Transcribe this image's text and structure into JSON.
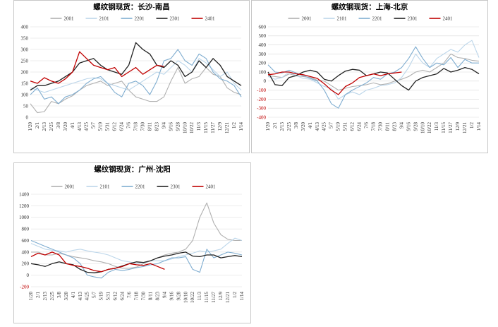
{
  "chart_data": [
    {
      "type": "line",
      "title": "螺纹钢现货：长沙-南昌",
      "legend_position": "top",
      "ylim": [
        0,
        400
      ],
      "yticks": [
        0,
        50,
        100,
        150,
        200,
        250,
        300,
        350,
        400
      ],
      "x_labels": [
        "1/20",
        "2/1",
        "2/13",
        "2/25",
        "3/8",
        "3/20",
        "4/1",
        "4/13",
        "4/25",
        "5/7",
        "5/19",
        "5/31",
        "6/12",
        "6/24",
        "7/6",
        "7/18",
        "7/30",
        "8/11",
        "8/23",
        "9/4",
        "9/16",
        "9/28",
        "10/10",
        "10/22",
        "11/3",
        "11/15",
        "11/27",
        "12/9",
        "12/21",
        "1/2",
        "1/14"
      ],
      "series": [
        {
          "name": "2001",
          "color": "#b0b0b0",
          "values": [
            60,
            20,
            25,
            70,
            60,
            80,
            95,
            120,
            140,
            150,
            160,
            140,
            150,
            160,
            120,
            90,
            80,
            70,
            70,
            90,
            160,
            220,
            150,
            170,
            180,
            220,
            190,
            180,
            130,
            110,
            100
          ]
        },
        {
          "name": "2101",
          "color": "#bcd6ea",
          "values": [
            130,
            120,
            110,
            120,
            130,
            140,
            150,
            160,
            170,
            175,
            170,
            150,
            140,
            130,
            120,
            140,
            160,
            180,
            200,
            190,
            220,
            250,
            230,
            200,
            260,
            240,
            210,
            180,
            200,
            150,
            120
          ]
        },
        {
          "name": "2201",
          "color": "#7fadd0",
          "values": [
            100,
            130,
            80,
            90,
            60,
            90,
            100,
            120,
            150,
            170,
            180,
            150,
            110,
            90,
            150,
            160,
            140,
            100,
            160,
            250,
            260,
            300,
            250,
            230,
            280,
            260,
            200,
            170,
            160,
            140,
            90
          ]
        },
        {
          "name": "2301",
          "color": "#222222",
          "values": [
            120,
            140,
            140,
            150,
            160,
            180,
            200,
            240,
            250,
            260,
            230,
            210,
            200,
            190,
            230,
            330,
            300,
            280,
            230,
            220,
            250,
            230,
            180,
            200,
            250,
            220,
            260,
            230,
            180,
            160,
            140
          ]
        },
        {
          "name": "2401",
          "color": "#c00000",
          "values": [
            160,
            150,
            175,
            160,
            150,
            170,
            200,
            290,
            260,
            230,
            220,
            210,
            220,
            180,
            200,
            220,
            190,
            210,
            230,
            225
          ]
        }
      ]
    },
    {
      "type": "line",
      "title": "螺纹钢现货：上海-北京",
      "legend_position": "top",
      "ylim": [
        -400,
        600
      ],
      "yticks": [
        -400,
        -300,
        -200,
        -100,
        0,
        100,
        200,
        300,
        400,
        500,
        600
      ],
      "x_labels": [
        "1/20",
        "2/1",
        "2/13",
        "2/25",
        "3/8",
        "3/20",
        "4/1",
        "4/13",
        "4/25",
        "5/7",
        "5/19",
        "5/31",
        "6/12",
        "6/24",
        "7/6",
        "7/18",
        "7/30",
        "8/11",
        "8/23",
        "9/4",
        "9/16",
        "9/28",
        "10/10",
        "10/22",
        "11/3",
        "11/15",
        "11/27",
        "12/9",
        "12/21",
        "1/2",
        "1/14"
      ],
      "series": [
        {
          "name": "2001",
          "color": "#b0b0b0",
          "values": [
            60,
            50,
            40,
            80,
            60,
            50,
            40,
            10,
            0,
            -50,
            -100,
            -80,
            -60,
            -50,
            -40,
            -20,
            -40,
            -30,
            0,
            20,
            50,
            100,
            120,
            100,
            150,
            200,
            300,
            260,
            250,
            230,
            220
          ]
        },
        {
          "name": "2101",
          "color": "#bcd6ea",
          "values": [
            50,
            20,
            40,
            100,
            60,
            30,
            20,
            -20,
            -60,
            -80,
            -200,
            -150,
            -120,
            -150,
            -100,
            -80,
            -50,
            -40,
            -20,
            40,
            150,
            300,
            200,
            150,
            250,
            300,
            350,
            320,
            400,
            450,
            260
          ]
        },
        {
          "name": "2201",
          "color": "#7fadd0",
          "values": [
            180,
            100,
            90,
            120,
            90,
            60,
            30,
            0,
            -100,
            -250,
            -300,
            -150,
            -100,
            -60,
            -20,
            40,
            20,
            80,
            100,
            150,
            250,
            380,
            250,
            150,
            200,
            180,
            260,
            150,
            240,
            200,
            200
          ]
        },
        {
          "name": "2301",
          "color": "#222222",
          "values": [
            100,
            -40,
            -50,
            40,
            60,
            100,
            120,
            100,
            20,
            0,
            60,
            110,
            130,
            120,
            60,
            80,
            100,
            90,
            20,
            -50,
            -100,
            0,
            40,
            60,
            80,
            140,
            100,
            120,
            150,
            130,
            80
          ]
        },
        {
          "name": "2401",
          "color": "#c00000",
          "values": [
            70,
            80,
            100,
            100,
            80,
            70,
            50,
            30,
            -30,
            -100,
            -150,
            -60,
            -20,
            40,
            60,
            80,
            60,
            80,
            90,
            100
          ]
        }
      ]
    },
    {
      "type": "line",
      "title": "螺纹钢现货：广州-沈阳",
      "legend_position": "top",
      "ylim": [
        -200,
        1400
      ],
      "yticks": [
        -200,
        0,
        200,
        400,
        600,
        800,
        1000,
        1200,
        1400
      ],
      "x_labels": [
        "1/20",
        "2/1",
        "2/13",
        "2/25",
        "3/8",
        "3/20",
        "4/1",
        "4/13",
        "4/25",
        "5/7",
        "5/19",
        "5/31",
        "6/12",
        "6/24",
        "7/6",
        "7/18",
        "7/30",
        "8/11",
        "8/23",
        "9/4",
        "9/16",
        "9/28",
        "10/10",
        "10/22",
        "11/3",
        "11/15",
        "11/27",
        "12/9",
        "12/21",
        "1/2",
        "1/14"
      ],
      "series": [
        {
          "name": "2001",
          "color": "#b0b0b0",
          "values": [
            400,
            400,
            350,
            350,
            380,
            350,
            320,
            300,
            280,
            250,
            230,
            200,
            150,
            120,
            120,
            140,
            200,
            250,
            300,
            350,
            380,
            400,
            450,
            600,
            1000,
            1250,
            900,
            700,
            620,
            600,
            600
          ]
        },
        {
          "name": "2101",
          "color": "#bcd6ea",
          "values": [
            550,
            500,
            450,
            430,
            420,
            400,
            430,
            450,
            420,
            400,
            380,
            350,
            300,
            250,
            230,
            200,
            220,
            250,
            250,
            250,
            280,
            320,
            350,
            380,
            420,
            400,
            420,
            450,
            550,
            640,
            600
          ]
        },
        {
          "name": "2201",
          "color": "#7fadd0",
          "values": [
            600,
            550,
            500,
            450,
            400,
            350,
            300,
            200,
            0,
            -30,
            -50,
            50,
            100,
            80,
            100,
            130,
            150,
            180,
            200,
            250,
            300,
            300,
            320,
            100,
            50,
            450,
            300,
            350,
            400,
            380,
            350
          ]
        },
        {
          "name": "2301",
          "color": "#222222",
          "values": [
            200,
            180,
            150,
            200,
            230,
            200,
            180,
            100,
            50,
            40,
            60,
            100,
            120,
            160,
            200,
            230,
            220,
            250,
            300,
            330,
            350,
            380,
            400,
            330,
            320,
            350,
            350,
            300,
            320,
            340,
            320
          ]
        },
        {
          "name": "2401",
          "color": "#c00000",
          "values": [
            320,
            380,
            350,
            400,
            350,
            200,
            170,
            150,
            120,
            80,
            60,
            100,
            120,
            150,
            200,
            180,
            170,
            200,
            150,
            100
          ]
        }
      ]
    }
  ]
}
